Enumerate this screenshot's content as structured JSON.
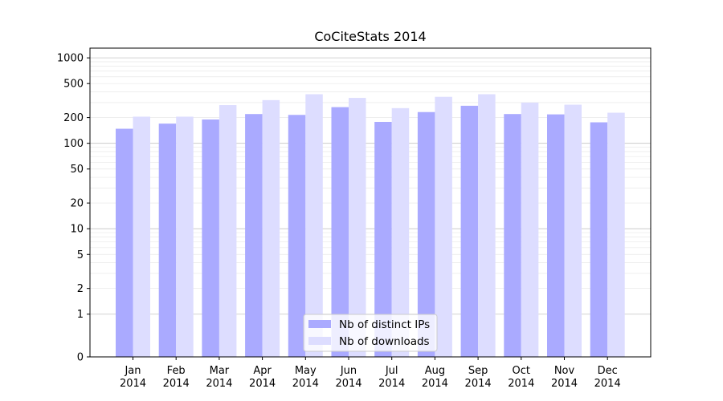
{
  "chart_data": {
    "type": "bar",
    "title": "CoCiteStats 2014",
    "xlabel": "",
    "ylabel": "",
    "yscale": "symlog",
    "ylim": [
      0,
      1300
    ],
    "yticks": [
      0,
      1,
      2,
      5,
      10,
      20,
      50,
      100,
      200,
      500,
      1000
    ],
    "ytick_labels": [
      "0",
      "1",
      "2",
      "5",
      "10",
      "20",
      "50",
      "100",
      "200",
      "500",
      "1000"
    ],
    "grid": true,
    "legend_position": "bottom-center",
    "categories": [
      [
        "Jan",
        "2014"
      ],
      [
        "Feb",
        "2014"
      ],
      [
        "Mar",
        "2014"
      ],
      [
        "Apr",
        "2014"
      ],
      [
        "May",
        "2014"
      ],
      [
        "Jun",
        "2014"
      ],
      [
        "Jul",
        "2014"
      ],
      [
        "Aug",
        "2014"
      ],
      [
        "Sep",
        "2014"
      ],
      [
        "Oct",
        "2014"
      ],
      [
        "Nov",
        "2014"
      ],
      [
        "Dec",
        "2014"
      ]
    ],
    "series": [
      {
        "name": "Nb of distinct IPs",
        "color": "#aaaaff",
        "values": [
          148,
          170,
          190,
          220,
          215,
          265,
          178,
          232,
          275,
          220,
          218,
          176
        ]
      },
      {
        "name": "Nb of downloads",
        "color": "#ddddff",
        "values": [
          205,
          205,
          280,
          320,
          375,
          340,
          258,
          350,
          375,
          300,
          283,
          228
        ]
      }
    ]
  }
}
